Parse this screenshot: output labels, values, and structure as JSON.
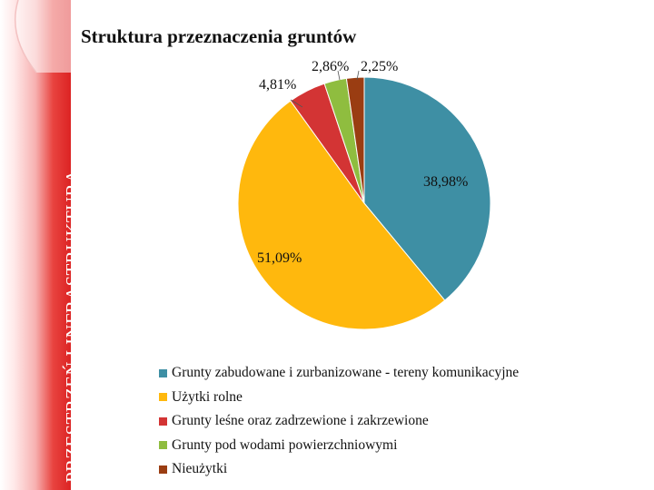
{
  "side_title": "PRZESTRZEŃ I INFRASTRUKTURA",
  "chart_data": {
    "type": "pie",
    "title": "Struktura przeznaczenia gruntów",
    "legend_position": "bottom",
    "slices": [
      {
        "name": "Grunty zabudowane i zurbanizowane - tereny komunikacyjne",
        "value": 38.98,
        "label": "38,98%",
        "color": "#3e8fa4"
      },
      {
        "name": "Użytki rolne",
        "value": 51.09,
        "label": "51,09%",
        "color": "#ffb80d"
      },
      {
        "name": "Grunty leśne oraz zadrzewione i zakrzewione",
        "value": 4.81,
        "label": "4,81%",
        "color": "#d33434"
      },
      {
        "name": "Grunty pod wodami powierzchniowymi",
        "value": 2.86,
        "label": "2,86%",
        "color": "#8fbd3f"
      },
      {
        "name": "Nieużytki",
        "value": 2.25,
        "label": "2,25%",
        "color": "#9a3d12"
      }
    ]
  }
}
